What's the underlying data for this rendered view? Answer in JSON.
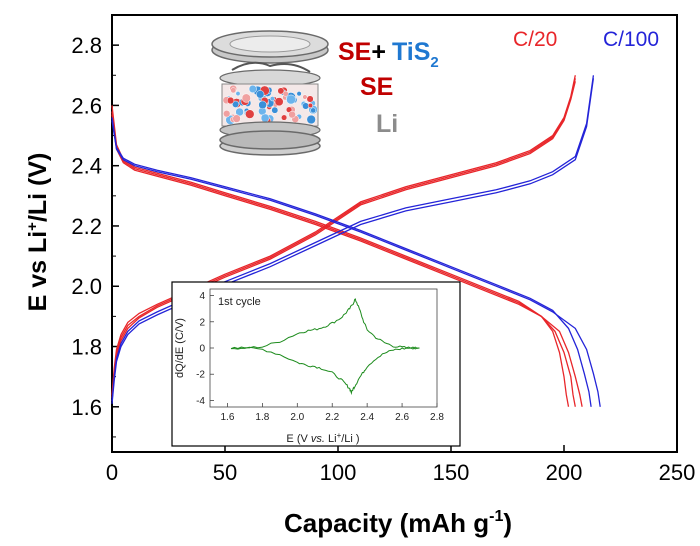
{
  "chart_data": {
    "type": "line",
    "xlabel": "Capacity (mAh g",
    "xlabel_sup": "-1",
    "xlabel_end": ")",
    "ylabel_pre": "E vs Li",
    "ylabel_sup": "+",
    "ylabel_post": "/Li (V)",
    "xlim": [
      0,
      250
    ],
    "ylim": [
      1.45,
      2.9
    ],
    "xticks": [
      0,
      50,
      100,
      150,
      200,
      250
    ],
    "yticks": [
      1.6,
      1.8,
      2.0,
      2.2,
      2.4,
      2.6,
      2.8
    ],
    "rate_labels": [
      {
        "text": "C/20",
        "color": "#e8262a"
      },
      {
        "text": "C/100",
        "color": "#2424d8"
      }
    ],
    "legend": {
      "line1_a": "SE",
      "line1_plus": "+",
      "line1_b": "TiS",
      "line1_sub": "2",
      "line2": "SE",
      "line3": "Li",
      "colors": {
        "se": "#c00000",
        "tis2": "#1f78d1",
        "li": "#8c8c8c",
        "plus": "#000000"
      }
    },
    "series": [
      {
        "color": "#e8262a",
        "discharge_x": [
          0,
          2,
          5,
          10,
          20,
          35,
          50,
          70,
          90,
          110,
          130,
          150,
          170,
          180,
          190,
          195,
          198,
          200,
          201,
          202
        ],
        "discharge_y": [
          2.6,
          2.47,
          2.42,
          2.395,
          2.375,
          2.345,
          2.31,
          2.265,
          2.215,
          2.16,
          2.1,
          2.04,
          1.98,
          1.95,
          1.9,
          1.85,
          1.78,
          1.7,
          1.64,
          1.6
        ],
        "charge_x": [
          0,
          1,
          2,
          4,
          7,
          12,
          20,
          35,
          50,
          70,
          90,
          110,
          130,
          150,
          170,
          185,
          195,
          200,
          203,
          205
        ],
        "charge_y": [
          1.64,
          1.73,
          1.79,
          1.84,
          1.88,
          1.91,
          1.94,
          1.99,
          2.04,
          2.1,
          2.18,
          2.28,
          2.33,
          2.37,
          2.41,
          2.45,
          2.5,
          2.56,
          2.63,
          2.7
        ]
      },
      {
        "color": "#e8262a",
        "discharge_x": [
          0,
          2,
          5,
          10,
          20,
          35,
          50,
          70,
          90,
          110,
          130,
          150,
          170,
          180,
          190,
          196,
          200,
          203,
          204,
          205
        ],
        "discharge_y": [
          2.58,
          2.46,
          2.415,
          2.39,
          2.37,
          2.34,
          2.305,
          2.26,
          2.21,
          2.155,
          2.095,
          2.035,
          1.975,
          1.945,
          1.9,
          1.85,
          1.78,
          1.7,
          1.64,
          1.6
        ],
        "charge_x": [
          0,
          1,
          2,
          4,
          7,
          12,
          20,
          35,
          50,
          70,
          90,
          110,
          130,
          150,
          170,
          185,
          195,
          200,
          203,
          205
        ],
        "charge_y": [
          1.63,
          1.72,
          1.78,
          1.83,
          1.87,
          1.9,
          1.935,
          1.985,
          2.035,
          2.095,
          2.175,
          2.275,
          2.325,
          2.365,
          2.405,
          2.445,
          2.495,
          2.555,
          2.625,
          2.69
        ]
      },
      {
        "color": "#e8262a",
        "discharge_x": [
          0,
          2,
          5,
          10,
          20,
          35,
          50,
          70,
          90,
          110,
          130,
          150,
          170,
          180,
          190,
          198,
          202,
          205,
          207,
          208
        ],
        "discharge_y": [
          2.57,
          2.455,
          2.41,
          2.385,
          2.365,
          2.335,
          2.3,
          2.255,
          2.205,
          2.15,
          2.09,
          2.03,
          1.97,
          1.94,
          1.9,
          1.85,
          1.78,
          1.7,
          1.64,
          1.6
        ],
        "charge_x": [
          0,
          1,
          2,
          4,
          7,
          12,
          20,
          35,
          50,
          70,
          90,
          110,
          130,
          150,
          170,
          185,
          195,
          200,
          203,
          205
        ],
        "charge_y": [
          1.62,
          1.71,
          1.77,
          1.82,
          1.86,
          1.895,
          1.93,
          1.98,
          2.03,
          2.09,
          2.17,
          2.27,
          2.32,
          2.36,
          2.4,
          2.44,
          2.49,
          2.55,
          2.62,
          2.68
        ]
      },
      {
        "color": "#2424d8",
        "discharge_x": [
          0,
          2,
          5,
          10,
          20,
          35,
          50,
          70,
          90,
          110,
          130,
          150,
          170,
          185,
          195,
          202,
          206,
          209,
          211,
          212
        ],
        "discharge_y": [
          2.56,
          2.46,
          2.425,
          2.405,
          2.385,
          2.36,
          2.33,
          2.29,
          2.24,
          2.185,
          2.125,
          2.065,
          2.005,
          1.96,
          1.92,
          1.86,
          1.79,
          1.71,
          1.65,
          1.6
        ],
        "charge_x": [
          0,
          1,
          2,
          4,
          7,
          12,
          20,
          35,
          50,
          70,
          90,
          110,
          130,
          150,
          170,
          185,
          195,
          205,
          210,
          213
        ],
        "charge_y": [
          1.62,
          1.7,
          1.76,
          1.81,
          1.85,
          1.885,
          1.915,
          1.965,
          2.015,
          2.075,
          2.145,
          2.215,
          2.26,
          2.29,
          2.32,
          2.35,
          2.38,
          2.43,
          2.54,
          2.7
        ]
      },
      {
        "color": "#2424d8",
        "discharge_x": [
          0,
          2,
          5,
          10,
          20,
          35,
          50,
          70,
          90,
          110,
          130,
          150,
          170,
          185,
          195,
          205,
          210,
          213,
          215,
          216
        ],
        "discharge_y": [
          2.55,
          2.455,
          2.42,
          2.4,
          2.38,
          2.355,
          2.325,
          2.285,
          2.235,
          2.18,
          2.12,
          2.06,
          2.0,
          1.955,
          1.915,
          1.86,
          1.79,
          1.71,
          1.65,
          1.6
        ],
        "charge_x": [
          0,
          1,
          2,
          4,
          7,
          12,
          20,
          35,
          50,
          70,
          90,
          110,
          130,
          150,
          170,
          185,
          195,
          205,
          210,
          213
        ],
        "charge_y": [
          1.61,
          1.69,
          1.75,
          1.8,
          1.84,
          1.875,
          1.905,
          1.955,
          2.005,
          2.065,
          2.135,
          2.205,
          2.25,
          2.28,
          2.31,
          2.34,
          2.37,
          2.42,
          2.53,
          2.69
        ]
      }
    ],
    "inset": {
      "title": "1st cycle",
      "xlabel_pre": "E (V ",
      "xlabel_it": "vs.",
      "xlabel_mid": " Li",
      "xlabel_sup": "+",
      "xlabel_post": "/Li )",
      "ylabel": "dQ/dE (C/V)",
      "xlim": [
        1.5,
        2.8
      ],
      "ylim": [
        -4.5,
        4.5
      ],
      "xticks": [
        1.6,
        1.8,
        2.0,
        2.2,
        2.4,
        2.6,
        2.8
      ],
      "yticks": [
        -4,
        -2,
        0,
        2,
        4
      ],
      "color": "#1e8c1e",
      "upper_x": [
        1.62,
        1.7,
        1.8,
        1.9,
        2.0,
        2.05,
        2.1,
        2.15,
        2.2,
        2.25,
        2.28,
        2.3,
        2.32,
        2.33,
        2.34,
        2.36,
        2.38,
        2.4,
        2.45,
        2.5,
        2.55,
        2.6,
        2.65,
        2.7
      ],
      "upper_y": [
        0.0,
        0.0,
        0.1,
        0.5,
        1.1,
        1.3,
        1.4,
        1.6,
        1.9,
        2.3,
        2.7,
        3.0,
        3.4,
        3.7,
        3.5,
        2.8,
        2.0,
        1.4,
        0.8,
        0.4,
        0.15,
        0.05,
        0.0,
        0.0
      ],
      "lower_x": [
        1.62,
        1.7,
        1.8,
        1.9,
        2.0,
        2.05,
        2.1,
        2.15,
        2.2,
        2.25,
        2.28,
        2.3,
        2.31,
        2.32,
        2.33,
        2.35,
        2.38,
        2.4,
        2.45,
        2.5,
        2.55,
        2.6,
        2.65,
        2.7
      ],
      "lower_y": [
        0.0,
        0.0,
        -0.1,
        -0.5,
        -1.1,
        -1.3,
        -1.4,
        -1.6,
        -1.9,
        -2.4,
        -2.8,
        -3.1,
        -3.4,
        -3.1,
        -2.9,
        -2.4,
        -1.8,
        -1.4,
        -0.8,
        -0.4,
        -0.15,
        -0.05,
        0.0,
        0.0
      ]
    }
  }
}
